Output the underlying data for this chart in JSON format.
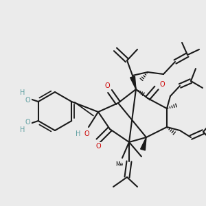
{
  "bg_color": "#ebebeb",
  "bond_color": "#1a1a1a",
  "oxygen_color": "#cc0000",
  "hydroxyl_color": "#5c9ea0",
  "lw": 1.5,
  "fig_w": 3.0,
  "fig_h": 3.0,
  "dpi": 100,
  "xlim": [
    0,
    300
  ],
  "ylim": [
    0,
    300
  ]
}
